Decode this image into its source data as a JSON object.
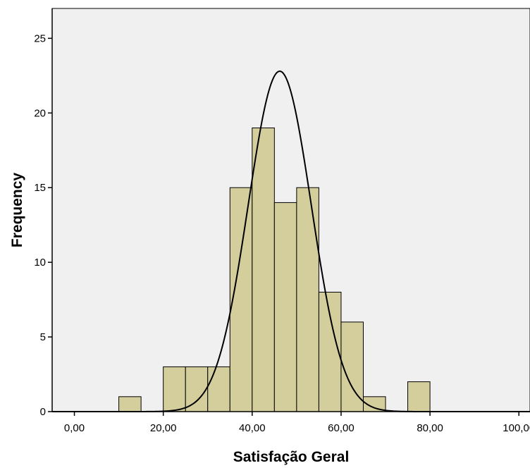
{
  "chart_data": {
    "type": "bar",
    "subtype": "histogram",
    "xlabel": "Satisfação Geral",
    "ylabel": "Frequency",
    "xlim": [
      -5,
      102.5
    ],
    "ylim": [
      0,
      27
    ],
    "x_ticks": [
      {
        "value": 0,
        "label": "0,00"
      },
      {
        "value": 20,
        "label": "20,00"
      },
      {
        "value": 40,
        "label": "40,00"
      },
      {
        "value": 60,
        "label": "60,00"
      },
      {
        "value": 80,
        "label": "80,00"
      },
      {
        "value": 100,
        "label": "100,00"
      }
    ],
    "y_ticks": [
      {
        "value": 0,
        "label": "0"
      },
      {
        "value": 5,
        "label": "5"
      },
      {
        "value": 10,
        "label": "10"
      },
      {
        "value": 15,
        "label": "15"
      },
      {
        "value": 20,
        "label": "20"
      },
      {
        "value": 25,
        "label": "25"
      }
    ],
    "bins": [
      {
        "start": 10,
        "end": 15,
        "count": 1
      },
      {
        "start": 20,
        "end": 25,
        "count": 3
      },
      {
        "start": 25,
        "end": 30,
        "count": 3
      },
      {
        "start": 30,
        "end": 35,
        "count": 3
      },
      {
        "start": 35,
        "end": 40,
        "count": 15
      },
      {
        "start": 40,
        "end": 45,
        "count": 19
      },
      {
        "start": 45,
        "end": 50,
        "count": 14
      },
      {
        "start": 50,
        "end": 55,
        "count": 15
      },
      {
        "start": 55,
        "end": 60,
        "count": 8
      },
      {
        "start": 60,
        "end": 65,
        "count": 6
      },
      {
        "start": 65,
        "end": 70,
        "count": 1
      },
      {
        "start": 75,
        "end": 80,
        "count": 2
      }
    ],
    "normal_curve": {
      "mean": 46.2,
      "std_dev": 7.1,
      "peak": 22.8
    },
    "grid": false,
    "colors": {
      "bar_fill": "#d3ce9b",
      "bar_stroke": "#000000",
      "plot_background": "#f0f0f0",
      "curve": "#000000"
    }
  }
}
